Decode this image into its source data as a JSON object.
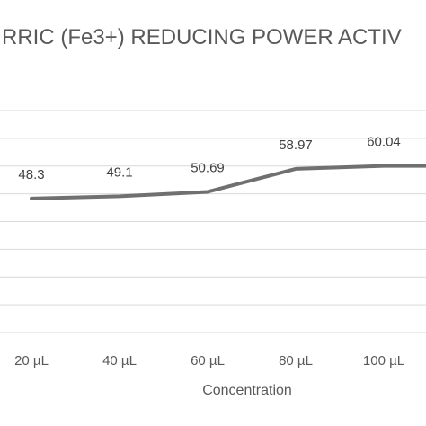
{
  "chart_data": {
    "type": "line",
    "title": "RRIC (Fe3+) REDUCING POWER ACTIV",
    "xlabel": "Concentration",
    "ylabel": "",
    "categories": [
      "20 µL",
      "40 µL",
      "60 µL",
      "80 µL",
      "100 µL",
      ""
    ],
    "series": [
      {
        "values": [
          48.3,
          49.1,
          50.69,
          58.97,
          60.04,
          60.04
        ],
        "color": "#707070"
      }
    ],
    "data_labels": [
      "48.3",
      "49.1",
      "50.69",
      "58.97",
      "60.04"
    ],
    "ylim": [
      0,
      80
    ],
    "grid": true,
    "legend": "none"
  }
}
